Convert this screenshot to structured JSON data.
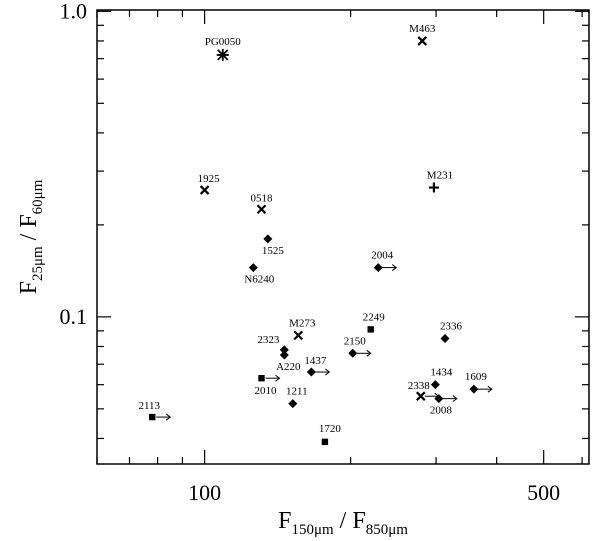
{
  "chart_data": {
    "type": "scatter",
    "xlabel": {
      "base": "F",
      "sub_top": "150μm",
      "sep": " / ",
      "base2": "F",
      "sub_bottom": "850μm"
    },
    "ylabel": {
      "base": "F",
      "sub_top": "25μm",
      "sep": " / ",
      "base2": "F",
      "sub_bottom": "60μm"
    },
    "x_scale": "log",
    "y_scale": "log",
    "xlim": [
      60,
      620
    ],
    "ylim": [
      0.033,
      1.01
    ],
    "x_tick_labels": [
      {
        "value": 100,
        "label": "100"
      },
      {
        "value": 500,
        "label": "500"
      }
    ],
    "y_tick_labels": [
      {
        "value": 0.1,
        "label": "0.1"
      },
      {
        "value": 1.0,
        "label": "1.0"
      }
    ],
    "grid": false,
    "points": [
      {
        "name": "PG0050",
        "x": 109,
        "y": 0.72,
        "marker": "asterisk",
        "limit": false
      },
      {
        "name": "M463",
        "x": 281,
        "y": 0.8,
        "marker": "x",
        "limit": false
      },
      {
        "name": "1925",
        "x": 100,
        "y": 0.26,
        "marker": "x",
        "limit": false
      },
      {
        "name": "M231",
        "x": 297,
        "y": 0.265,
        "marker": "plus",
        "limit": false
      },
      {
        "name": "0518",
        "x": 131,
        "y": 0.225,
        "marker": "x",
        "limit": false
      },
      {
        "name": "1525",
        "x": 135,
        "y": 0.18,
        "marker": "diamond",
        "limit": false
      },
      {
        "name": "N6240",
        "x": 126,
        "y": 0.145,
        "marker": "diamond",
        "limit": false
      },
      {
        "name": "2004",
        "x": 228,
        "y": 0.145,
        "marker": "diamond",
        "limit": true
      },
      {
        "name": "M273",
        "x": 156,
        "y": 0.087,
        "marker": "x",
        "limit": false
      },
      {
        "name": "2249",
        "x": 220,
        "y": 0.091,
        "marker": "square",
        "limit": false
      },
      {
        "name": "2336",
        "x": 313,
        "y": 0.085,
        "marker": "diamond",
        "limit": false
      },
      {
        "name": "2323",
        "x": 146,
        "y": 0.078,
        "marker": "diamond",
        "limit": false
      },
      {
        "name": "A220",
        "x": 146,
        "y": 0.075,
        "marker": "diamond",
        "limit": false
      },
      {
        "name": "2150",
        "x": 202,
        "y": 0.076,
        "marker": "diamond",
        "limit": true
      },
      {
        "name": "1437",
        "x": 166,
        "y": 0.066,
        "marker": "diamond",
        "limit": true
      },
      {
        "name": "2010",
        "x": 131,
        "y": 0.063,
        "marker": "square",
        "limit": true
      },
      {
        "name": "1434",
        "x": 299,
        "y": 0.06,
        "marker": "diamond",
        "limit": false
      },
      {
        "name": "1609",
        "x": 359,
        "y": 0.058,
        "marker": "diamond",
        "limit": true
      },
      {
        "name": "2338",
        "x": 279,
        "y": 0.055,
        "marker": "x",
        "limit": true
      },
      {
        "name": "2008",
        "x": 304,
        "y": 0.054,
        "marker": "diamond",
        "limit": true
      },
      {
        "name": "1211",
        "x": 152,
        "y": 0.052,
        "marker": "diamond",
        "limit": false
      },
      {
        "name": "2113",
        "x": 78,
        "y": 0.047,
        "marker": "square",
        "limit": true
      },
      {
        "name": "1720",
        "x": 177,
        "y": 0.039,
        "marker": "square",
        "limit": false
      }
    ]
  }
}
